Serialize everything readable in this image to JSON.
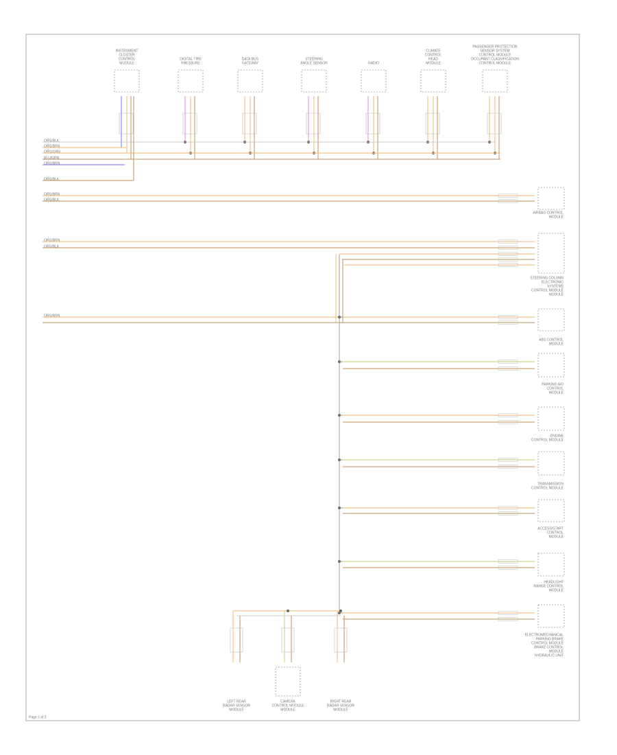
{
  "diagram": {
    "top_components": [
      {
        "label": [
          "INSTRUMENT",
          "CLUSTER",
          "CONTROL",
          "MODULE"
        ]
      },
      {
        "label": [
          "DIGITAL TIRE",
          "PRESSURE"
        ]
      },
      {
        "label": [
          "DATA BUS",
          "GATEWAY"
        ]
      },
      {
        "label": [
          "STEERING",
          "ANGLE SENSOR"
        ]
      },
      {
        "label": [
          "RADIO"
        ]
      },
      {
        "label": [
          "CLIMATE",
          "CONTROL",
          "HEAD",
          "MODULE"
        ]
      },
      {
        "label": [
          "PASSENGER PROTECTION",
          "SENSOR SYSTEM",
          "CONTROL MODULE",
          "OCCUPANT CLASSIFICATION",
          "CONTROL MODULE"
        ]
      }
    ],
    "left_wires": [
      "ORG/BLK",
      "ORG/BRN",
      "ORG/GRN",
      "BLU/GRN",
      "ORG/BRN",
      "ORG/BLK",
      "ORG/BRN",
      "ORG/BLK",
      "ORG/BRN",
      "ORG/BLK",
      "ORG/BRN"
    ],
    "right_modules": [
      {
        "label": [
          "AIRBAG CONTROL",
          "MODULE"
        ]
      },
      {
        "label": [
          "STEERING COLUMN",
          "ELECTRONIC",
          "SYSTEMS",
          "CONTROL MODULE",
          "MODULE"
        ]
      },
      {
        "label": [
          "ABS CONTROL",
          "MODULE"
        ]
      },
      {
        "label": [
          "PARKING AID",
          "CONTROL",
          "MODULE"
        ]
      },
      {
        "label": [
          "ENGINE",
          "CONTROL MODULE"
        ]
      },
      {
        "label": [
          "TRANSMISSION",
          "CONTROL MODULE"
        ]
      },
      {
        "label": [
          "ACCESS/START",
          "CONTROL",
          "MODULE"
        ]
      },
      {
        "label": [
          "HEADLIGHT",
          "RANGE CONTROL",
          "MODULE"
        ]
      },
      {
        "label": [
          "ELECTROMECHANICAL",
          "PARKING BRAKE",
          "CONTROL MODULE",
          "BRAKE CONTROL",
          "MODULE",
          "HYDRAULIC UNIT"
        ]
      }
    ],
    "bottom_components": [
      {
        "label": [
          "LEFT REAR",
          "RADAR SENSOR",
          "MODULE"
        ]
      },
      {
        "label": [
          "CAMERA",
          "CONTROL MODULE",
          "MODULE"
        ]
      },
      {
        "label": [
          "RIGHT REAR",
          "RADAR SENSOR",
          "MODULE"
        ]
      }
    ],
    "footer": "Page 2 of 2"
  }
}
